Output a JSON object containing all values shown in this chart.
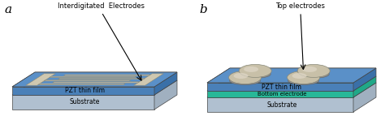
{
  "fig_width": 4.74,
  "fig_height": 1.43,
  "dpi": 100,
  "bg_color": "#ffffff",
  "label_a": "a",
  "label_b": "b",
  "pzt_top_color_a": "#5a90c8",
  "pzt_front_color_a": "#4a80b8",
  "pzt_right_color_a": "#3a70a8",
  "sub_top_color_a": "#c0d0e0",
  "sub_front_color_a": "#b0c0d0",
  "sub_right_color_a": "#a0b0c0",
  "pzt_top_color_b": "#5a90c8",
  "pzt_front_color_b": "#4a80b8",
  "pzt_right_color_b": "#3a70a8",
  "bot_top_color_b": "#30d0b0",
  "bot_front_color_b": "#28b898",
  "bot_right_color_b": "#20a888",
  "sub_top_color_b": "#c0d0e0",
  "sub_front_color_b": "#b0c0d0",
  "sub_right_color_b": "#a0b0c0",
  "interdig_color": "#d0c8b0",
  "pad_color": "#c8c0a8",
  "pad_shadow_color": "#a0a098",
  "annot_a": "Interdigitated  Electrodes",
  "annot_b": "Top electrodes",
  "text_pzt_a": "PZT thin film",
  "text_sub_a": "Substrate",
  "text_pzt_b": "PZT thin film",
  "text_bot_b": "Bottom electrode",
  "text_sub_b": "Substrate"
}
